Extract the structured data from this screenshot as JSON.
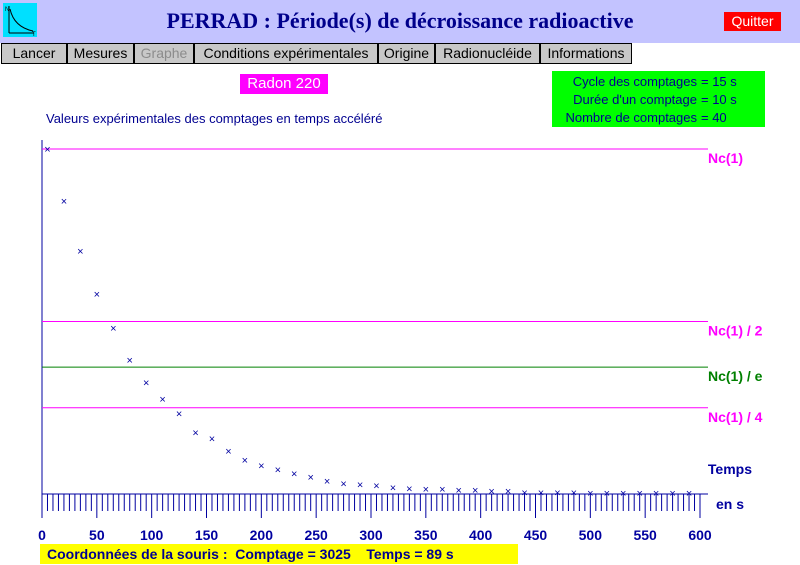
{
  "window": {
    "title": "PERRAD : Période(s) de décroissance radioactive",
    "quit_label": "Quitter",
    "icon": "decay-curve-icon"
  },
  "menu": [
    {
      "label": "Lancer",
      "enabled": true
    },
    {
      "label": "Mesures",
      "enabled": true
    },
    {
      "label": "Graphe",
      "enabled": false
    },
    {
      "label": "Conditions expérimentales",
      "enabled": true
    },
    {
      "label": "Origine",
      "enabled": true
    },
    {
      "label": "Radionucléide",
      "enabled": true
    },
    {
      "label": "Informations",
      "enabled": true
    }
  ],
  "isotope": "Radon 220",
  "params": [
    {
      "label": "Cycle des comptages",
      "value": "= 15 s"
    },
    {
      "label": "Durée d'un comptage",
      "value": "= 10 s"
    },
    {
      "label": "Nombre de comptages",
      "value": "= 40"
    }
  ],
  "plot_caption": "Valeurs expérimentales des comptages en temps accéléré",
  "status": {
    "prefix": "Coordonnées de la souris :",
    "count_text": "Comptage = 3025",
    "time_text": "Temps = 89 s"
  },
  "colors": {
    "title": "#00008b",
    "magenta": "#ff00ff",
    "green": "#008000",
    "blue": "#0000a0"
  },
  "chart_data": {
    "type": "scatter",
    "x_axis": {
      "label": "Temps",
      "unit_label": "en s",
      "min": 0,
      "max": 600,
      "major_step": 50,
      "minor_step": 5,
      "tick_labels": [
        "0",
        "50",
        "100",
        "150",
        "200",
        "250",
        "300",
        "350",
        "400",
        "450",
        "500",
        "550",
        "600"
      ]
    },
    "y_axis": {
      "relative_min": 0,
      "relative_max": 1
    },
    "reference_lines": [
      {
        "label": "Nc(1)",
        "fraction": 1.0,
        "color": "#ff00ff"
      },
      {
        "label": "Nc(1) / 2",
        "fraction": 0.5,
        "color": "#ff00ff"
      },
      {
        "label": "Nc(1) / e",
        "fraction": 0.3679,
        "color": "#008000"
      },
      {
        "label": "Nc(1) / 4",
        "fraction": 0.25,
        "color": "#ff00ff"
      }
    ],
    "marker": "×",
    "x": [
      5,
      20,
      35,
      50,
      65,
      80,
      95,
      110,
      125,
      140,
      155,
      170,
      185,
      200,
      215,
      230,
      245,
      260,
      275,
      290,
      305,
      320,
      335,
      350,
      365,
      380,
      395,
      410,
      425,
      440,
      455,
      470,
      485,
      500,
      515,
      530,
      545,
      560,
      575,
      590
    ],
    "relative_counts": [
      1.0,
      0.85,
      0.704,
      0.579,
      0.481,
      0.389,
      0.323,
      0.275,
      0.234,
      0.178,
      0.161,
      0.124,
      0.099,
      0.082,
      0.071,
      0.06,
      0.049,
      0.038,
      0.03,
      0.027,
      0.025,
      0.019,
      0.016,
      0.014,
      0.014,
      0.011,
      0.011,
      0.008,
      0.008,
      0.005,
      0.005,
      0.005,
      0.005,
      0.003,
      0.003,
      0.003,
      0.003,
      0.003,
      0.003,
      0.003
    ]
  }
}
